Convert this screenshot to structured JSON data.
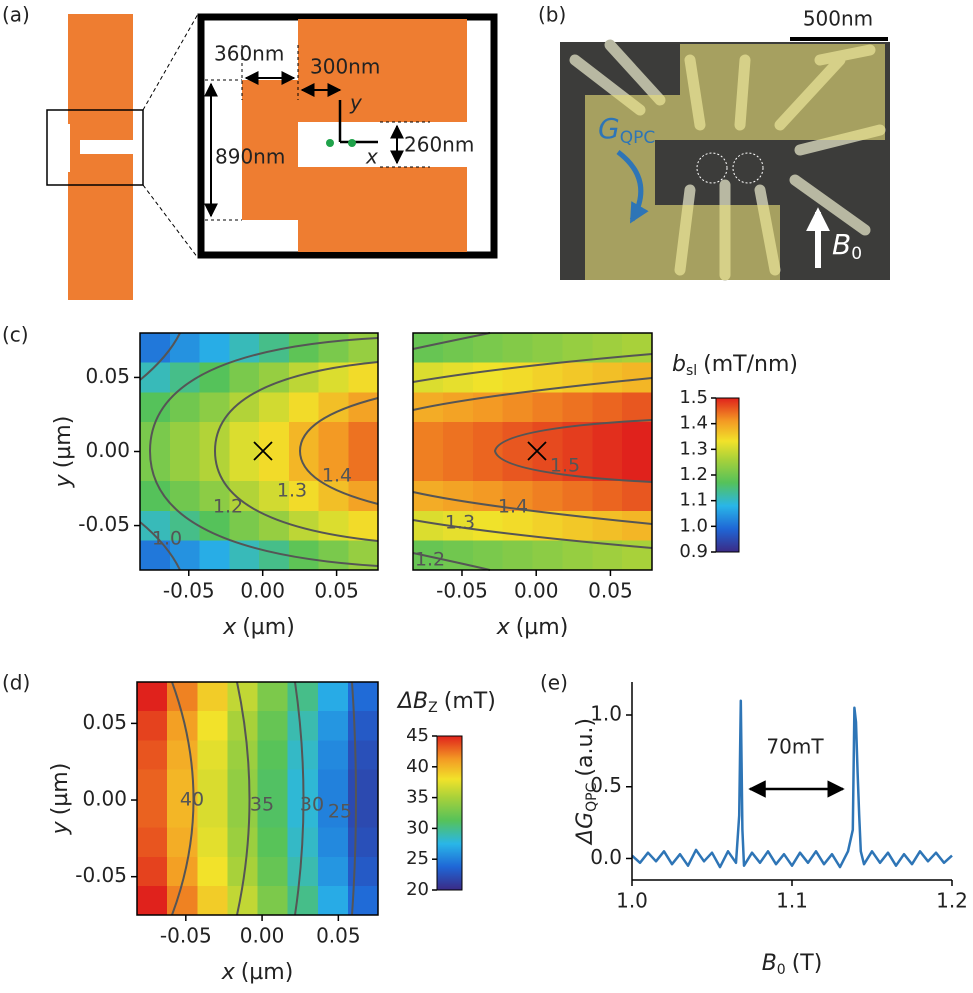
{
  "panels": {
    "a": {
      "label": "(a)",
      "dimensions": [
        "360nm",
        "300nm",
        "890nm",
        "260nm"
      ],
      "axes": [
        "y",
        "x"
      ]
    },
    "b": {
      "label": "(b)",
      "scale_bar": "500nm",
      "conductance": [
        "G",
        "QPC"
      ],
      "field": [
        "B",
        "0"
      ]
    }
  },
  "chart_data": [
    {
      "type": "heatmap",
      "panel_label": "(c)",
      "xlabel": {
        "var": "x",
        "unit": "(µm)"
      },
      "ylabel": {
        "var": "y",
        "unit": "(µm)"
      },
      "xlim": [
        -0.083,
        0.078
      ],
      "ylim": [
        -0.08,
        0.08
      ],
      "xticks": [
        -0.05,
        {
          "value": 0,
          "label": "0.00"
        },
        0.05
      ],
      "yticks": [
        -0.05,
        {
          "value": 0,
          "label": "0.00"
        },
        0.05
      ],
      "z": [
        [
          1.01,
          1.04,
          1.07,
          1.11,
          1.14,
          1.18,
          1.21,
          1.24
        ],
        [
          1.11,
          1.14,
          1.17,
          1.21,
          1.24,
          1.28,
          1.31,
          1.34
        ],
        [
          1.17,
          1.2,
          1.23,
          1.27,
          1.3,
          1.34,
          1.37,
          1.4
        ],
        [
          1.21,
          1.24,
          1.27,
          1.31,
          1.34,
          1.38,
          1.41,
          1.44
        ],
        [
          1.21,
          1.24,
          1.27,
          1.31,
          1.34,
          1.38,
          1.41,
          1.44
        ],
        [
          1.17,
          1.2,
          1.23,
          1.27,
          1.3,
          1.34,
          1.37,
          1.4
        ],
        [
          1.11,
          1.14,
          1.17,
          1.21,
          1.24,
          1.28,
          1.31,
          1.34
        ],
        [
          1.01,
          1.04,
          1.07,
          1.11,
          1.14,
          1.18,
          1.21,
          1.24
        ]
      ],
      "contours": [
        {
          "value": 1,
          "label": "1.0"
        },
        1.2,
        1.3,
        1.4
      ],
      "colorbar": {
        "label": [
          "b",
          "sl",
          "(mT/nm)"
        ],
        "lim": [
          0.9,
          1.5
        ],
        "ticks": [
          0.9,
          {
            "value": 1,
            "label": "1.0"
          },
          1.1,
          1.2,
          1.3,
          1.4,
          1.5
        ]
      }
    },
    {
      "type": "heatmap",
      "xlabel": {
        "var": "x",
        "unit": "(µm)"
      },
      "xlim": [
        -0.083,
        0.078
      ],
      "ylim": [
        -0.08,
        0.08
      ],
      "xticks": [
        -0.05,
        {
          "value": 0,
          "label": "0.00"
        },
        0.05
      ],
      "z": [
        [
          1.19,
          1.2,
          1.21,
          1.22,
          1.23,
          1.24,
          1.25,
          1.26
        ],
        [
          1.31,
          1.32,
          1.33,
          1.34,
          1.35,
          1.36,
          1.37,
          1.38
        ],
        [
          1.39,
          1.4,
          1.41,
          1.42,
          1.43,
          1.44,
          1.45,
          1.46
        ],
        [
          1.43,
          1.44,
          1.45,
          1.46,
          1.47,
          1.48,
          1.49,
          1.5
        ],
        [
          1.43,
          1.44,
          1.45,
          1.46,
          1.47,
          1.48,
          1.49,
          1.5
        ],
        [
          1.39,
          1.4,
          1.41,
          1.42,
          1.43,
          1.44,
          1.45,
          1.46
        ],
        [
          1.31,
          1.32,
          1.33,
          1.34,
          1.35,
          1.36,
          1.37,
          1.38
        ],
        [
          1.19,
          1.2,
          1.21,
          1.22,
          1.23,
          1.24,
          1.25,
          1.26
        ]
      ],
      "contours": [
        1.2,
        1.3,
        1.4,
        1.5
      ]
    },
    {
      "type": "heatmap",
      "panel_label": "(d)",
      "xlabel": {
        "var": "x",
        "unit": "(µm)"
      },
      "ylabel": {
        "var": "y",
        "unit": "(µm)"
      },
      "xlim": [
        -0.082,
        0.076
      ],
      "ylim": [
        -0.075,
        0.077
      ],
      "xticks": [
        -0.05,
        {
          "value": 0,
          "label": "0.00"
        },
        0.05
      ],
      "yticks": [
        -0.05,
        {
          "value": 0,
          "label": "0.00"
        },
        0.05
      ],
      "z": [
        [
          45,
          42,
          39,
          36,
          33,
          30,
          27,
          24
        ],
        [
          44,
          41,
          38,
          35,
          32,
          29,
          26,
          23
        ],
        [
          43.4,
          40.4,
          37.4,
          34.4,
          31.4,
          28.4,
          25.4,
          22.4
        ],
        [
          43,
          40,
          37,
          34,
          31,
          28,
          25,
          22
        ],
        [
          43,
          40,
          37,
          34,
          31,
          28,
          25,
          22
        ],
        [
          43.4,
          40.4,
          37.4,
          34.4,
          31.4,
          28.4,
          25.4,
          22.4
        ],
        [
          44,
          41,
          38,
          35,
          32,
          29,
          26,
          23
        ],
        [
          45,
          42,
          39,
          36,
          33,
          30,
          27,
          24
        ]
      ],
      "contours": [
        40,
        35,
        30,
        25
      ],
      "colorbar": {
        "label": [
          "ΔB",
          "Z",
          "(mT)"
        ],
        "lim": [
          20,
          45
        ],
        "ticks": [
          20,
          25,
          30,
          35,
          40,
          45
        ]
      }
    },
    {
      "type": "line",
      "panel_label": "(e)",
      "xlabel": [
        "B",
        "0",
        "(T)"
      ],
      "ylabel": [
        "ΔG",
        "QPC",
        "(a.u.)"
      ],
      "annotation": "70mT",
      "color": "#2e75b6",
      "xlim": [
        1.0,
        1.2
      ],
      "ylim": [
        -0.15,
        1.23
      ],
      "xticks": [
        {
          "value": 1,
          "label": "1.0"
        },
        1.1,
        1.2
      ],
      "yticks": [
        {
          "value": 0,
          "label": "0.0"
        },
        0.5,
        {
          "value": 1,
          "label": "1.0"
        }
      ],
      "x": [
        1.0,
        1.005,
        1.01,
        1.015,
        1.02,
        1.025,
        1.03,
        1.035,
        1.04,
        1.045,
        1.05,
        1.055,
        1.06,
        1.065,
        1.067,
        1.068,
        1.069,
        1.07,
        1.075,
        1.08,
        1.085,
        1.09,
        1.095,
        1.1,
        1.105,
        1.11,
        1.115,
        1.12,
        1.125,
        1.13,
        1.135,
        1.138,
        1.139,
        1.14,
        1.141,
        1.142,
        1.143,
        1.145,
        1.15,
        1.155,
        1.16,
        1.165,
        1.17,
        1.175,
        1.18,
        1.185,
        1.19,
        1.195,
        1.2
      ],
      "values": [
        0.02,
        -0.03,
        0.04,
        -0.02,
        0.05,
        -0.04,
        0.03,
        -0.05,
        0.06,
        -0.02,
        0.04,
        -0.06,
        0.05,
        -0.03,
        0.3,
        1.1,
        0.2,
        -0.05,
        0.04,
        -0.03,
        0.05,
        -0.04,
        0.03,
        -0.05,
        0.04,
        -0.03,
        0.05,
        -0.04,
        0.03,
        -0.06,
        0.05,
        0.2,
        1.05,
        0.95,
        0.6,
        0.3,
        0.05,
        -0.04,
        0.05,
        -0.03,
        0.04,
        -0.05,
        0.03,
        -0.04,
        0.05,
        -0.02,
        0.04,
        -0.03,
        0.02
      ]
    }
  ]
}
